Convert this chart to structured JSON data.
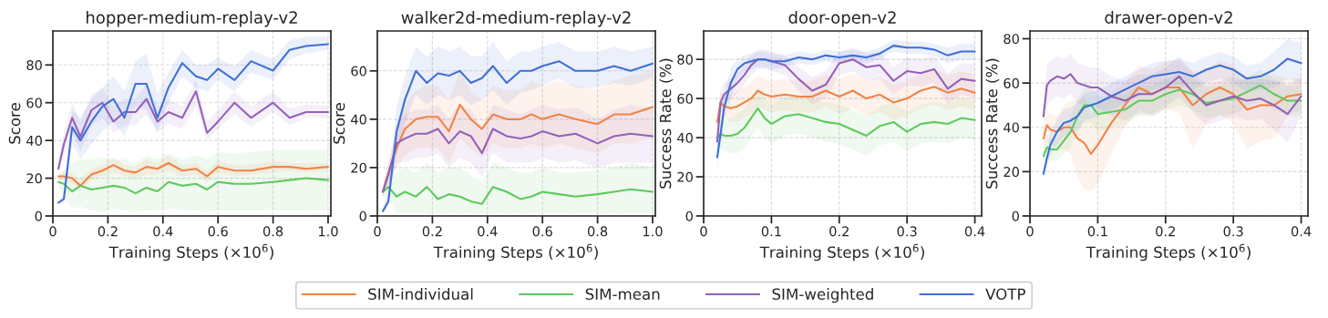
{
  "chart_data": [
    {
      "type": "line",
      "title": "hopper-medium-replay-v2",
      "xlabel": "Training Steps (×10$^{6}$)",
      "ylabel": "Score",
      "xlim": [
        0,
        1.01
      ],
      "xticks": [
        0,
        0.2,
        0.4,
        0.6,
        0.8,
        {
          "value": 1.0,
          "label": "1.0"
        }
      ],
      "ylim": [
        0,
        98
      ],
      "yticks": [
        0,
        20,
        40,
        60,
        80
      ],
      "grid": true,
      "legend": "bottom",
      "x": [
        0.02,
        0.04,
        0.07,
        0.1,
        0.14,
        0.18,
        0.22,
        0.26,
        0.3,
        0.34,
        0.38,
        0.42,
        0.47,
        0.52,
        0.56,
        0.6,
        0.66,
        0.72,
        0.8,
        0.86,
        0.92,
        1.0
      ],
      "series": [
        {
          "name": "SIM-individual",
          "color": "#f28245",
          "values": [
            21,
            21,
            20,
            16,
            22,
            24,
            27,
            24,
            23,
            26,
            25,
            28,
            24,
            25,
            21,
            26,
            24,
            24,
            26,
            26,
            25,
            26
          ],
          "lower": [
            19,
            19,
            17,
            13,
            19,
            21,
            23,
            21,
            20,
            22,
            22,
            24,
            21,
            22,
            18,
            23,
            21,
            22,
            23,
            24,
            23,
            24
          ],
          "upper": [
            23,
            23,
            23,
            19,
            25,
            27,
            31,
            27,
            26,
            30,
            28,
            32,
            27,
            28,
            24,
            29,
            27,
            27,
            29,
            28,
            28,
            28
          ]
        },
        {
          "name": "SIM-mean",
          "color": "#5ec95e",
          "values": [
            18,
            17,
            13,
            16,
            14,
            15,
            16,
            15,
            12,
            15,
            13,
            18,
            16,
            17,
            14,
            18,
            17,
            17,
            18,
            19,
            20,
            19
          ],
          "lower": [
            16,
            10,
            4,
            5,
            3,
            2,
            4,
            3,
            2,
            3,
            3,
            4,
            3,
            3,
            2,
            3,
            3,
            3,
            3,
            3,
            3,
            3
          ],
          "upper": [
            20,
            24,
            28,
            30,
            30,
            31,
            30,
            30,
            28,
            32,
            30,
            33,
            30,
            32,
            30,
            34,
            33,
            34,
            35,
            35,
            35,
            35
          ]
        },
        {
          "name": "SIM-weighted",
          "color": "#9460b8",
          "values": [
            25,
            38,
            52,
            42,
            56,
            60,
            50,
            55,
            55,
            62,
            50,
            55,
            52,
            66,
            44,
            50,
            60,
            52,
            60,
            52,
            55,
            55
          ],
          "lower": [
            22,
            32,
            44,
            34,
            48,
            52,
            44,
            48,
            48,
            54,
            44,
            49,
            46,
            58,
            40,
            46,
            54,
            47,
            55,
            48,
            52,
            52
          ],
          "upper": [
            28,
            44,
            60,
            50,
            64,
            68,
            58,
            62,
            62,
            70,
            58,
            62,
            58,
            72,
            50,
            56,
            66,
            58,
            66,
            57,
            59,
            58
          ]
        },
        {
          "name": "VOTP",
          "color": "#3f6fd6",
          "values": [
            7,
            9,
            47,
            40,
            50,
            58,
            62,
            52,
            70,
            70,
            52,
            68,
            81,
            74,
            72,
            78,
            72,
            82,
            77,
            88,
            90,
            91
          ],
          "lower": [
            6,
            7,
            38,
            30,
            38,
            45,
            50,
            42,
            58,
            56,
            45,
            60,
            74,
            68,
            66,
            72,
            66,
            76,
            72,
            83,
            86,
            88
          ],
          "upper": [
            8,
            12,
            56,
            52,
            62,
            68,
            74,
            66,
            82,
            86,
            65,
            76,
            88,
            80,
            80,
            84,
            79,
            88,
            83,
            93,
            95,
            95
          ]
        }
      ]
    },
    {
      "type": "line",
      "title": "walker2d-medium-replay-v2",
      "xlabel": "Training Steps (×10$^{6}$)",
      "ylabel": "Score",
      "xlim": [
        0,
        1.01
      ],
      "xticks": [
        0,
        0.2,
        0.4,
        0.6,
        0.8,
        {
          "value": 1.0,
          "label": "1.0"
        }
      ],
      "ylim": [
        0,
        76.5
      ],
      "yticks": [
        0,
        20,
        40,
        60
      ],
      "grid": true,
      "x": [
        0.02,
        0.04,
        0.07,
        0.1,
        0.14,
        0.18,
        0.22,
        0.26,
        0.3,
        0.34,
        0.38,
        0.42,
        0.47,
        0.52,
        0.56,
        0.6,
        0.66,
        0.72,
        0.8,
        0.86,
        0.92,
        1.0
      ],
      "series": [
        {
          "color": "#f28245",
          "values": [
            10,
            18,
            28,
            36,
            40,
            41,
            41,
            35,
            46,
            40,
            36,
            42,
            40,
            40,
            42,
            40,
            42,
            40,
            38,
            42,
            42,
            45
          ],
          "lower": [
            8,
            14,
            20,
            25,
            28,
            28,
            28,
            22,
            32,
            28,
            24,
            30,
            28,
            28,
            30,
            28,
            30,
            28,
            26,
            30,
            30,
            32
          ],
          "upper": [
            12,
            22,
            36,
            47,
            52,
            54,
            54,
            48,
            60,
            52,
            48,
            54,
            52,
            52,
            56,
            54,
            56,
            54,
            52,
            56,
            58,
            60
          ]
        },
        {
          "color": "#5ec95e",
          "values": [
            10,
            12,
            8,
            10,
            8,
            12,
            7,
            9,
            8,
            6,
            5,
            12,
            10,
            7,
            8,
            10,
            9,
            8,
            9,
            10,
            11,
            10
          ],
          "lower": [
            8,
            8,
            1,
            1,
            1,
            1,
            1,
            1,
            1,
            1,
            1,
            1,
            1,
            1,
            1,
            1,
            1,
            1,
            1,
            1,
            1,
            1
          ],
          "upper": [
            12,
            18,
            18,
            20,
            18,
            22,
            18,
            20,
            20,
            17,
            14,
            22,
            20,
            18,
            18,
            20,
            18,
            18,
            19,
            20,
            22,
            20
          ]
        },
        {
          "color": "#9460b8",
          "values": [
            10,
            17,
            30,
            32,
            34,
            34,
            36,
            30,
            35,
            33,
            26,
            36,
            33,
            32,
            33,
            35,
            33,
            34,
            30,
            33,
            34,
            33
          ],
          "lower": [
            8,
            13,
            22,
            22,
            24,
            24,
            26,
            20,
            24,
            22,
            16,
            26,
            22,
            22,
            22,
            24,
            22,
            23,
            20,
            22,
            22,
            22
          ],
          "upper": [
            12,
            21,
            38,
            42,
            44,
            44,
            46,
            40,
            46,
            44,
            36,
            46,
            44,
            42,
            44,
            46,
            44,
            45,
            40,
            44,
            46,
            44
          ]
        },
        {
          "color": "#3f6fd6",
          "values": [
            2,
            6,
            35,
            48,
            60,
            55,
            59,
            58,
            60,
            55,
            57,
            62,
            55,
            60,
            60,
            62,
            64,
            60,
            60,
            62,
            60,
            63
          ],
          "lower": [
            1,
            4,
            25,
            38,
            50,
            46,
            50,
            48,
            50,
            46,
            48,
            52,
            46,
            51,
            52,
            54,
            57,
            53,
            53,
            55,
            54,
            57
          ],
          "upper": [
            4,
            10,
            45,
            58,
            70,
            66,
            70,
            68,
            70,
            66,
            66,
            72,
            64,
            68,
            68,
            70,
            72,
            68,
            68,
            70,
            68,
            70
          ]
        }
      ]
    },
    {
      "type": "line",
      "title": "door-open-v2",
      "xlabel": "Training Steps (×10$^{6}$)",
      "ylabel": "Success Rate (%)",
      "xlim": [
        0,
        0.41
      ],
      "xticks": [
        0,
        0.1,
        0.2,
        0.3,
        0.4
      ],
      "ylim": [
        0,
        94.5
      ],
      "yticks": [
        0,
        20,
        40,
        60,
        80
      ],
      "grid": true,
      "x": [
        0.02,
        0.025,
        0.03,
        0.04,
        0.05,
        0.06,
        0.07,
        0.08,
        0.09,
        0.1,
        0.12,
        0.14,
        0.16,
        0.18,
        0.2,
        0.22,
        0.24,
        0.26,
        0.28,
        0.3,
        0.32,
        0.34,
        0.36,
        0.38,
        0.4
      ],
      "series": [
        {
          "color": "#f28245",
          "values": [
            48,
            58,
            56,
            55,
            56,
            58,
            60,
            64,
            62,
            61,
            62,
            61,
            61,
            64,
            61,
            64,
            60,
            62,
            58,
            60,
            64,
            66,
            63,
            65,
            63
          ],
          "lower": [
            44,
            52,
            50,
            48,
            48,
            50,
            52,
            56,
            54,
            53,
            54,
            53,
            53,
            56,
            52,
            55,
            51,
            53,
            49,
            51,
            55,
            57,
            54,
            56,
            54
          ],
          "upper": [
            52,
            64,
            62,
            62,
            64,
            66,
            68,
            72,
            70,
            69,
            70,
            69,
            69,
            72,
            70,
            73,
            69,
            71,
            67,
            69,
            73,
            75,
            72,
            74,
            72
          ]
        },
        {
          "color": "#5ec95e",
          "values": [
            40,
            42,
            41,
            41,
            42,
            45,
            50,
            55,
            50,
            47,
            51,
            52,
            50,
            48,
            47,
            44,
            41,
            46,
            48,
            43,
            47,
            48,
            47,
            50,
            49
          ],
          "lower": [
            34,
            34,
            33,
            32,
            32,
            35,
            40,
            45,
            40,
            37,
            41,
            42,
            40,
            38,
            37,
            34,
            31,
            36,
            38,
            33,
            37,
            38,
            37,
            40,
            39
          ],
          "upper": [
            46,
            50,
            49,
            50,
            52,
            55,
            60,
            65,
            60,
            57,
            61,
            62,
            60,
            58,
            57,
            54,
            51,
            56,
            58,
            53,
            57,
            58,
            57,
            60,
            59
          ]
        },
        {
          "color": "#9460b8",
          "values": [
            38,
            58,
            62,
            65,
            68,
            72,
            77,
            80,
            80,
            79,
            77,
            70,
            64,
            67,
            78,
            80,
            76,
            77,
            69,
            74,
            73,
            75,
            65,
            70,
            69
          ],
          "lower": [
            32,
            52,
            56,
            60,
            63,
            67,
            72,
            75,
            75,
            74,
            72,
            64,
            57,
            60,
            72,
            74,
            69,
            70,
            62,
            67,
            66,
            68,
            57,
            62,
            60
          ],
          "upper": [
            44,
            64,
            68,
            70,
            73,
            77,
            82,
            85,
            85,
            84,
            82,
            76,
            71,
            74,
            84,
            86,
            83,
            84,
            76,
            81,
            80,
            82,
            73,
            78,
            78
          ]
        },
        {
          "color": "#3f6fd6",
          "values": [
            30,
            42,
            55,
            68,
            75,
            78,
            79,
            80,
            80,
            79,
            79,
            81,
            80,
            82,
            81,
            82,
            81,
            83,
            87,
            86,
            86,
            85,
            82,
            84,
            84
          ],
          "lower": [
            24,
            36,
            48,
            60,
            70,
            74,
            75,
            76,
            76,
            75,
            76,
            78,
            77,
            79,
            78,
            79,
            78,
            80,
            84,
            83,
            83,
            82,
            78,
            80,
            80
          ],
          "upper": [
            36,
            48,
            62,
            76,
            80,
            82,
            83,
            84,
            84,
            83,
            82,
            84,
            83,
            85,
            84,
            85,
            84,
            86,
            90,
            89,
            89,
            88,
            86,
            88,
            88
          ]
        }
      ]
    },
    {
      "type": "line",
      "title": "drawer-open-v2",
      "xlabel": "Training Steps (×10$^{6}$)",
      "ylabel": "Success Rate (%)",
      "xlim": [
        0,
        0.41
      ],
      "xticks": [
        0,
        0.1,
        0.2,
        0.3,
        0.4
      ],
      "ylim": [
        0,
        83.5
      ],
      "yticks": [
        0,
        20,
        40,
        60,
        80
      ],
      "grid": true,
      "x": [
        0.02,
        0.025,
        0.03,
        0.04,
        0.05,
        0.06,
        0.07,
        0.08,
        0.09,
        0.1,
        0.12,
        0.14,
        0.16,
        0.18,
        0.2,
        0.22,
        0.24,
        0.26,
        0.28,
        0.3,
        0.32,
        0.34,
        0.36,
        0.38,
        0.4
      ],
      "series": [
        {
          "color": "#f28245",
          "values": [
            35,
            41,
            39,
            38,
            40,
            40,
            35,
            33,
            28,
            32,
            42,
            50,
            58,
            55,
            58,
            58,
            50,
            55,
            58,
            55,
            48,
            50,
            50,
            54,
            55
          ],
          "lower": [
            30,
            34,
            32,
            31,
            30,
            28,
            18,
            12,
            11,
            14,
            28,
            40,
            48,
            45,
            48,
            47,
            30,
            42,
            46,
            42,
            30,
            34,
            35,
            45,
            48
          ],
          "upper": [
            40,
            48,
            46,
            45,
            50,
            52,
            52,
            54,
            45,
            50,
            56,
            60,
            68,
            66,
            70,
            70,
            65,
            66,
            70,
            68,
            63,
            64,
            64,
            62,
            62
          ]
        },
        {
          "color": "#5ec95e",
          "values": [
            27,
            31,
            30,
            30,
            34,
            38,
            45,
            50,
            50,
            46,
            47,
            48,
            52,
            52,
            55,
            57,
            55,
            51,
            52,
            53,
            56,
            59,
            55,
            52,
            52
          ],
          "lower": [
            24,
            26,
            25,
            25,
            28,
            31,
            37,
            42,
            42,
            38,
            40,
            41,
            45,
            45,
            48,
            50,
            48,
            44,
            45,
            46,
            49,
            52,
            48,
            45,
            45
          ],
          "upper": [
            30,
            36,
            35,
            35,
            40,
            45,
            53,
            58,
            58,
            54,
            54,
            55,
            59,
            59,
            62,
            64,
            62,
            58,
            59,
            60,
            63,
            66,
            62,
            59,
            59
          ]
        },
        {
          "color": "#9460b8",
          "values": [
            45,
            59,
            61,
            63,
            62,
            64,
            60,
            59,
            58,
            58,
            54,
            52,
            55,
            55,
            58,
            63,
            56,
            50,
            52,
            54,
            52,
            53,
            50,
            46,
            54
          ],
          "lower": [
            40,
            50,
            52,
            54,
            53,
            55,
            51,
            50,
            49,
            49,
            45,
            43,
            46,
            46,
            49,
            54,
            47,
            41,
            43,
            45,
            43,
            44,
            39,
            33,
            45
          ],
          "upper": [
            50,
            68,
            70,
            72,
            71,
            73,
            69,
            68,
            67,
            67,
            63,
            61,
            64,
            64,
            67,
            72,
            65,
            59,
            61,
            63,
            61,
            62,
            61,
            59,
            63
          ]
        },
        {
          "color": "#3f6fd6",
          "values": [
            19,
            26,
            32,
            38,
            42,
            43,
            45,
            49,
            50,
            51,
            54,
            57,
            60,
            63,
            64,
            65,
            63,
            66,
            68,
            66,
            62,
            63,
            66,
            71,
            69
          ],
          "lower": [
            17,
            22,
            27,
            32,
            36,
            37,
            39,
            43,
            44,
            45,
            48,
            51,
            54,
            57,
            58,
            59,
            57,
            60,
            62,
            60,
            56,
            57,
            58,
            62,
            60
          ],
          "upper": [
            21,
            30,
            37,
            44,
            48,
            49,
            51,
            55,
            56,
            57,
            60,
            63,
            66,
            69,
            70,
            71,
            69,
            72,
            74,
            72,
            68,
            69,
            74,
            80,
            78
          ]
        }
      ]
    }
  ]
}
